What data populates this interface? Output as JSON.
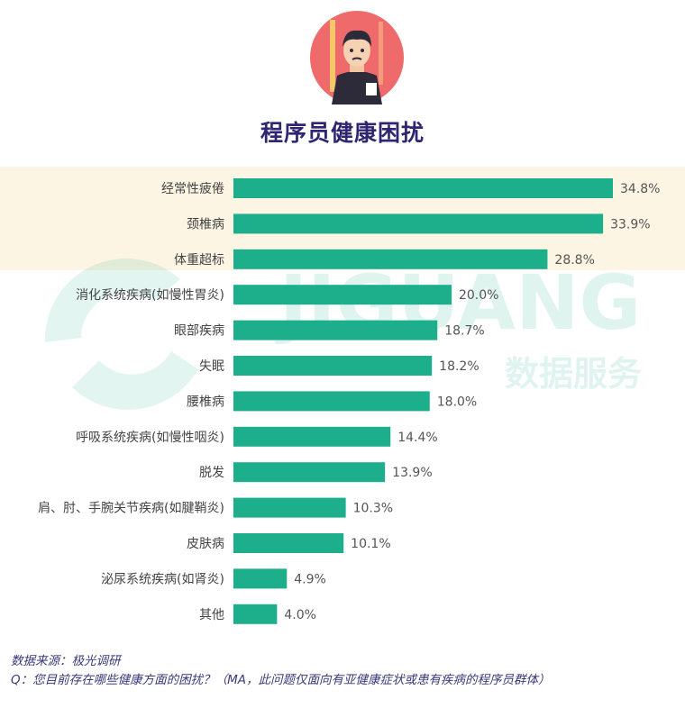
{
  "title": "程序员健康困扰",
  "watermark": {
    "brand": "JIGUANG",
    "cn": "数据服务"
  },
  "colors": {
    "bar": "#1dae8c",
    "highlight": "#fdf5e4",
    "title": "#2e2672",
    "label": "#444444",
    "value": "#555555"
  },
  "chart_data": {
    "type": "bar",
    "orientation": "horizontal",
    "title": "程序员健康困扰",
    "categories": [
      "经常性疲倦",
      "颈椎病",
      "体重超标",
      "消化系统疾病(如慢性胃炎)",
      "眼部疾病",
      "失眠",
      "腰椎病",
      "呼吸系统疾病(如慢性咽炎)",
      "脱发",
      "肩、肘、手腕关节疾病(如腱鞘炎)",
      "皮肤病",
      "泌尿系统疾病(如肾炎)",
      "其他"
    ],
    "values": [
      34.8,
      33.9,
      28.8,
      20.0,
      18.7,
      18.2,
      18.0,
      14.4,
      13.9,
      10.3,
      10.1,
      4.9,
      4.0
    ],
    "value_labels": [
      "34.8%",
      "33.9%",
      "28.8%",
      "20.0%",
      "18.7%",
      "18.2%",
      "18.0%",
      "14.4%",
      "13.9%",
      "10.3%",
      "10.1%",
      "4.9%",
      "4.0%"
    ],
    "xlim": [
      0,
      40
    ],
    "highlighted_categories": [
      "经常性疲倦",
      "颈椎病",
      "体重超标"
    ],
    "grid": false
  },
  "footer": {
    "source": "数据来源：极光调研",
    "question": "Q：您目前存在哪些健康方面的困扰？（MA，此问题仅面向有亚健康症状或患有疾病的程序员群体）"
  }
}
